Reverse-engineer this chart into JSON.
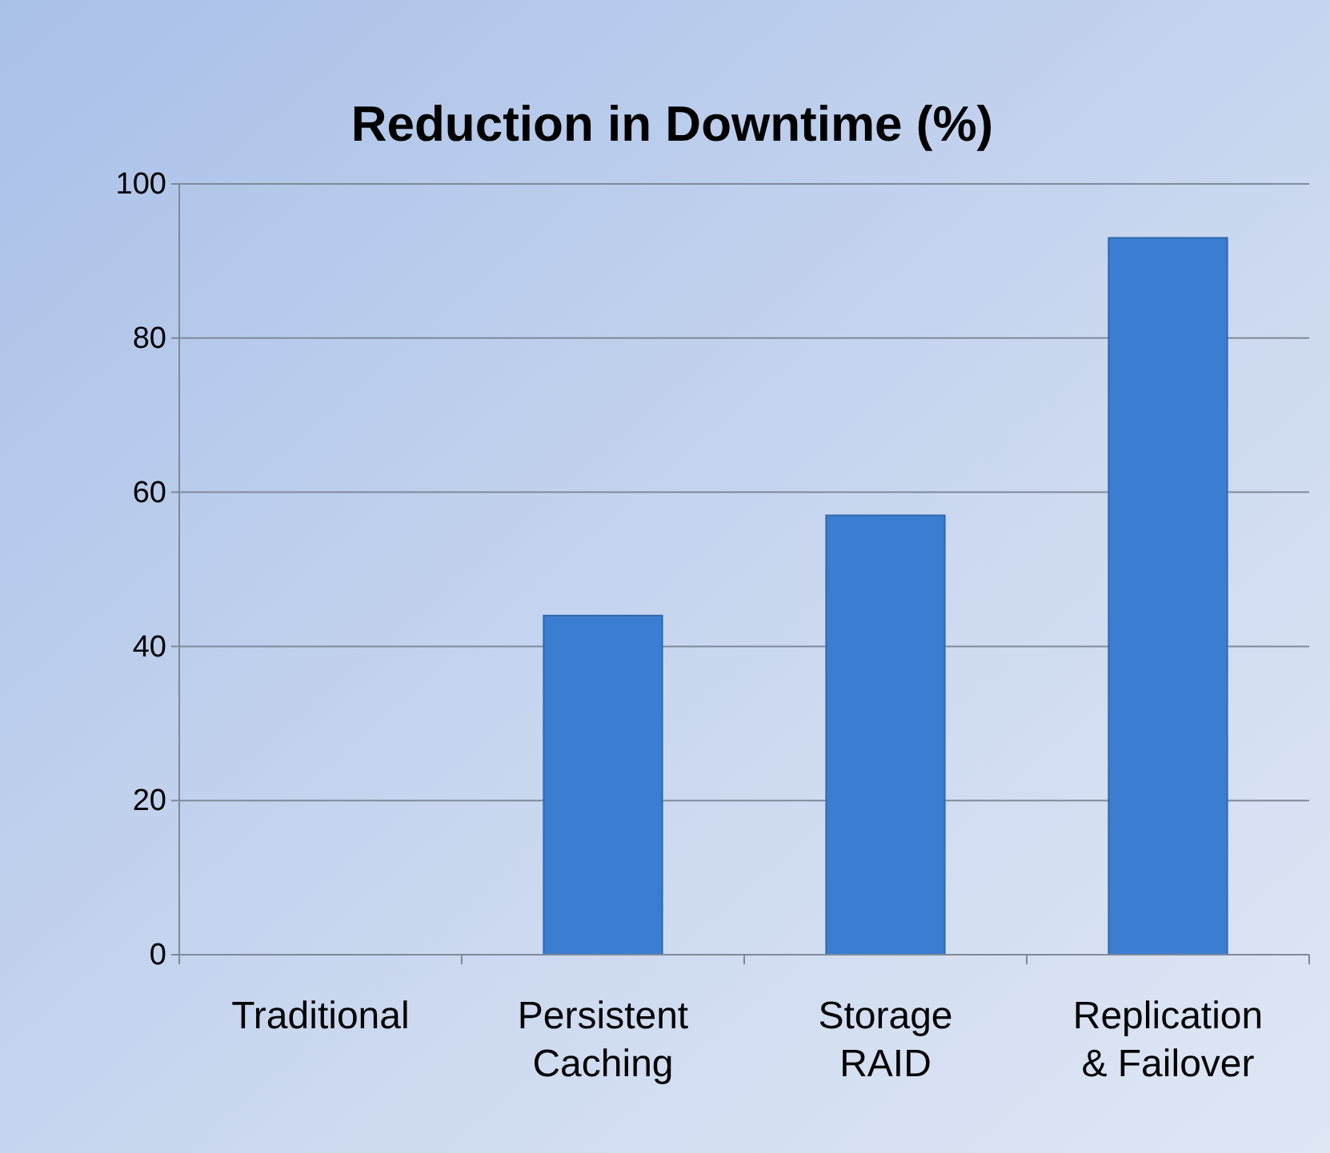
{
  "chart_data": {
    "type": "bar",
    "title": "Reduction in Downtime (%)",
    "categories": [
      "Traditional",
      "Persistent Caching",
      "Storage RAID",
      "Replication & Failover"
    ],
    "values": [
      0,
      44,
      57,
      93
    ],
    "color": "#3b7dd0",
    "ylim": [
      0,
      100
    ],
    "yticks": [
      0,
      20,
      40,
      60,
      80,
      100
    ],
    "grid": "y"
  }
}
